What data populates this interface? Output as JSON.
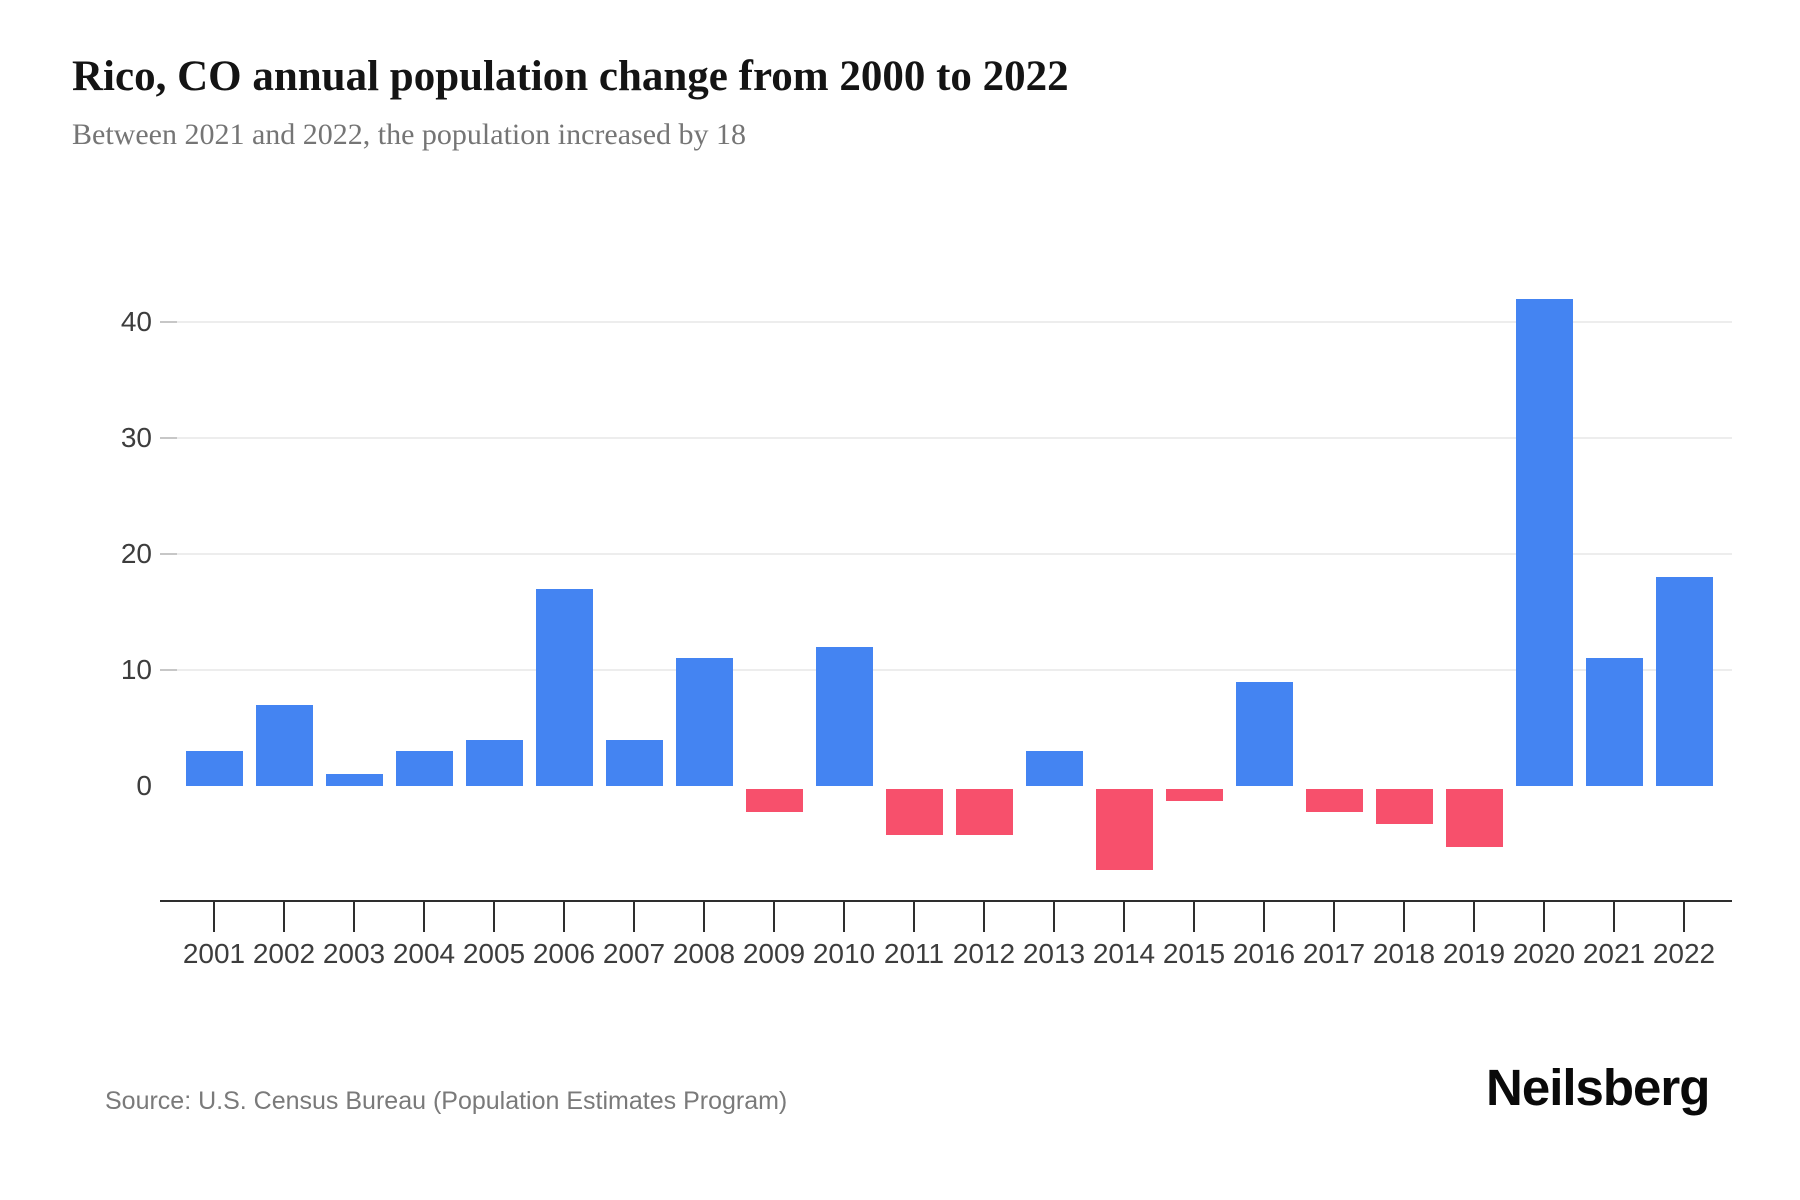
{
  "header": {
    "title": "Rico, CO annual population change from 2000 to 2022",
    "subtitle": "Between 2021 and 2022, the population increased by 18"
  },
  "footer": {
    "source": "Source: U.S. Census Bureau (Population Estimates Program)",
    "brand": "Neilsberg"
  },
  "chart_data": {
    "type": "bar",
    "title": "Rico, CO annual population change from 2000 to 2022",
    "subtitle": "Between 2021 and 2022, the population increased by 18",
    "categories": [
      "2001",
      "2002",
      "2003",
      "2004",
      "2005",
      "2006",
      "2007",
      "2008",
      "2009",
      "2010",
      "2011",
      "2012",
      "2013",
      "2014",
      "2015",
      "2016",
      "2017",
      "2018",
      "2019",
      "2020",
      "2021",
      "2022"
    ],
    "values": [
      3,
      7,
      1,
      3,
      4,
      17,
      4,
      11,
      -2,
      12,
      -4,
      -4,
      3,
      -7,
      -1,
      9,
      -2,
      -3,
      -5,
      42,
      11,
      18
    ],
    "xlabel": "",
    "ylabel": "",
    "y_ticks": [
      0,
      10,
      20,
      30,
      40
    ],
    "ylim": [
      -10,
      45
    ],
    "grid": true,
    "legend": "none",
    "colors": {
      "positive": "#4484f2",
      "negative": "#f7506c"
    }
  }
}
